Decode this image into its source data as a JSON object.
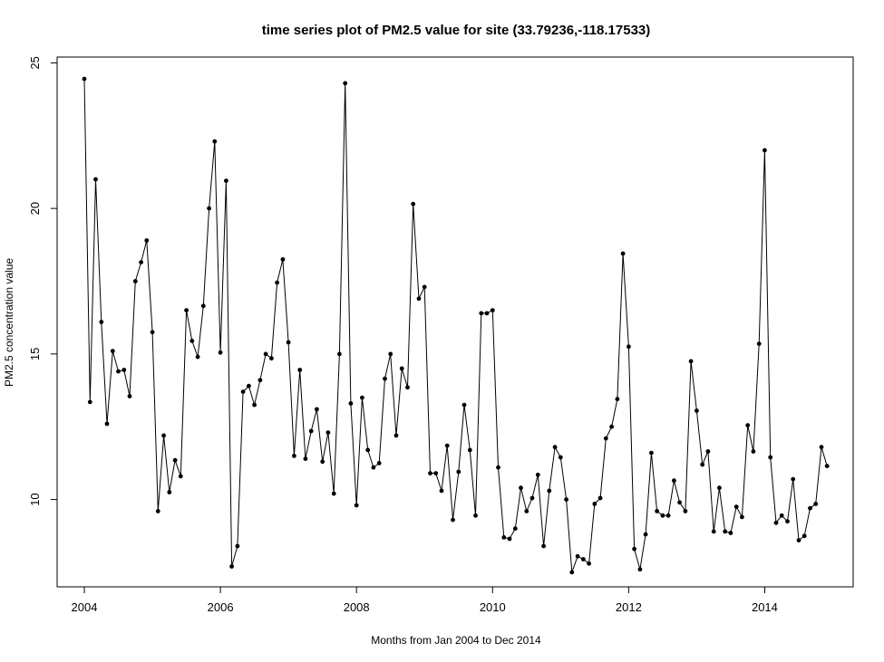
{
  "chart_data": {
    "type": "line",
    "title": "time series plot of PM2.5 value for site (33.79236,-118.17533)",
    "xlabel": "Months from Jan 2004 to Dec 2014",
    "ylabel": "PM2.5 concentration value",
    "xlim": [
      2003.6,
      2015.3
    ],
    "ylim": [
      7.0,
      25.2
    ],
    "x_ticks": [
      2004,
      2006,
      2008,
      2010,
      2012,
      2014
    ],
    "x_tick_labels": [
      "2004",
      "2006",
      "2008",
      "2010",
      "2012",
      "2014"
    ],
    "y_ticks": [
      10,
      15,
      20,
      25
    ],
    "y_tick_labels": [
      "10",
      "15",
      "20",
      "25"
    ],
    "grid": false,
    "legend": "none",
    "marker": "filled-circle",
    "line_color": "#000000",
    "series": [
      {
        "x": [
          "2004-01",
          "2004-02",
          "2004-03",
          "2004-04",
          "2004-05",
          "2004-06",
          "2004-07",
          "2004-08",
          "2004-09",
          "2004-10",
          "2004-11",
          "2004-12",
          "2005-01",
          "2005-02",
          "2005-03",
          "2005-04",
          "2005-05",
          "2005-06",
          "2005-07",
          "2005-08",
          "2005-09",
          "2005-10",
          "2005-11",
          "2005-12",
          "2006-01",
          "2006-02",
          "2006-03",
          "2006-04",
          "2006-05",
          "2006-06",
          "2006-07",
          "2006-08",
          "2006-09",
          "2006-10",
          "2006-11",
          "2006-12",
          "2007-01",
          "2007-02",
          "2007-03",
          "2007-04",
          "2007-05",
          "2007-06",
          "2007-07",
          "2007-08",
          "2007-09",
          "2007-10",
          "2007-11",
          "2007-12",
          "2008-01",
          "2008-02",
          "2008-03",
          "2008-04",
          "2008-05",
          "2008-06",
          "2008-07",
          "2008-08",
          "2008-09",
          "2008-10",
          "2008-11",
          "2008-12",
          "2009-01",
          "2009-02",
          "2009-03",
          "2009-04",
          "2009-05",
          "2009-06",
          "2009-07",
          "2009-08",
          "2009-09",
          "2009-10",
          "2009-11",
          "2009-12",
          "2010-01",
          "2010-02",
          "2010-03",
          "2010-04",
          "2010-05",
          "2010-06",
          "2010-07",
          "2010-08",
          "2010-09",
          "2010-10",
          "2010-11",
          "2010-12",
          "2011-01",
          "2011-02",
          "2011-03",
          "2011-04",
          "2011-05",
          "2011-06",
          "2011-07",
          "2011-08",
          "2011-09",
          "2011-10",
          "2011-11",
          "2011-12",
          "2012-01",
          "2012-02",
          "2012-03",
          "2012-04",
          "2012-05",
          "2012-06",
          "2012-07",
          "2012-08",
          "2012-09",
          "2012-10",
          "2012-11",
          "2012-12",
          "2013-01",
          "2013-02",
          "2013-03",
          "2013-04",
          "2013-05",
          "2013-06",
          "2013-07",
          "2013-08",
          "2013-09",
          "2013-10",
          "2013-11",
          "2013-12",
          "2014-01",
          "2014-02",
          "2014-03",
          "2014-04",
          "2014-05",
          "2014-06",
          "2014-07",
          "2014-08",
          "2014-09",
          "2014-10",
          "2014-11",
          "2014-12"
        ],
        "values": [
          24.45,
          13.35,
          21.0,
          16.1,
          12.6,
          15.1,
          14.4,
          14.45,
          13.55,
          17.5,
          18.15,
          18.9,
          15.75,
          9.6,
          12.2,
          10.25,
          11.35,
          10.8,
          16.5,
          15.45,
          14.9,
          16.65,
          20.0,
          22.3,
          15.05,
          20.95,
          7.7,
          8.4,
          13.7,
          13.9,
          13.25,
          14.1,
          15.0,
          14.85,
          17.45,
          18.25,
          15.4,
          11.5,
          14.45,
          11.4,
          12.35,
          13.1,
          11.3,
          12.3,
          10.2,
          15.0,
          24.3,
          13.3,
          9.8,
          13.5,
          11.7,
          11.1,
          11.25,
          14.15,
          15.0,
          12.2,
          14.5,
          13.85,
          20.15,
          16.9,
          17.3,
          10.9,
          10.9,
          10.3,
          11.85,
          9.3,
          10.95,
          13.25,
          11.7,
          9.45,
          16.4,
          16.4,
          16.5,
          11.1,
          8.7,
          8.65,
          9.0,
          10.4,
          9.6,
          10.05,
          10.85,
          8.4,
          10.3,
          11.8,
          11.45,
          10.0,
          7.5,
          8.05,
          7.95,
          7.8,
          9.85,
          10.05,
          12.1,
          12.5,
          13.45,
          18.45,
          15.25,
          8.3,
          7.6,
          8.8,
          11.6,
          9.6,
          9.45,
          9.45,
          10.65,
          9.9,
          9.6,
          14.75,
          13.05,
          11.2,
          11.65,
          8.9,
          10.4,
          8.9,
          8.85,
          9.75,
          9.4,
          12.55,
          11.65,
          15.35,
          22.0,
          11.45,
          9.2,
          9.45,
          9.25,
          10.7,
          8.6,
          8.75,
          9.7,
          9.85,
          11.8,
          11.15
        ]
      }
    ]
  }
}
